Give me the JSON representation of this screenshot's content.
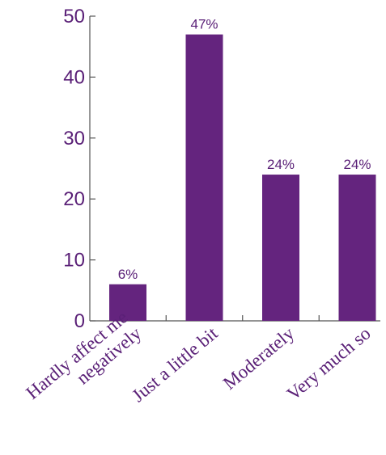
{
  "chart_data": {
    "type": "bar",
    "categories": [
      "Hardly affect me negatively",
      "Just a little bit",
      "Moderately",
      "Very much so"
    ],
    "category_lines": [
      [
        "Hardly affect  me",
        "negatively"
      ],
      [
        "Just a little bit"
      ],
      [
        "Moderately"
      ],
      [
        "Very much so"
      ]
    ],
    "values": [
      6,
      47,
      24,
      24
    ],
    "data_labels": [
      "6%",
      "47%",
      "24%",
      "24%"
    ],
    "title": "",
    "xlabel": "",
    "ylabel": "",
    "ylim": [
      0,
      50
    ],
    "yticks": [
      0,
      10,
      20,
      30,
      40,
      50
    ],
    "grid": false,
    "legend": "none",
    "colors": {
      "bar": "#64247e",
      "axis": "#555555",
      "text": "#5a2077"
    }
  }
}
